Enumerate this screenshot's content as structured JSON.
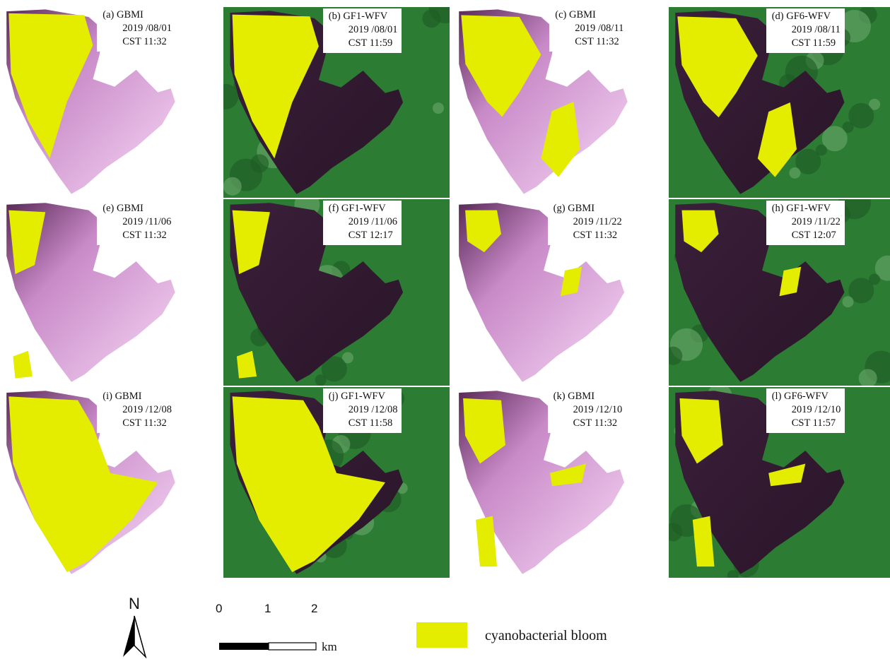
{
  "colors": {
    "bloom": "#e4ec00",
    "water_dark": "#3b1d39",
    "land_green": "#2c7c33",
    "gbmi_pink": "#e8b4e6"
  },
  "panels": [
    {
      "letter": "(a)",
      "sensor": "GBMI",
      "date": "2019 /08/01",
      "time": "CST 11:32",
      "type": "gbmi",
      "variant": 0
    },
    {
      "letter": "(b)",
      "sensor": "GF1-WFV",
      "date": "2019 /08/01",
      "time": "CST 11:59",
      "type": "wfv",
      "variant": 0
    },
    {
      "letter": "(c)",
      "sensor": "GBMI",
      "date": "2019 /08/11",
      "time": "CST 11:32",
      "type": "gbmi",
      "variant": 1
    },
    {
      "letter": "(d)",
      "sensor": "GF6-WFV",
      "date": "2019 /08/11",
      "time": "CST 11:59",
      "type": "wfv",
      "variant": 1
    },
    {
      "letter": "(e)",
      "sensor": "GBMI",
      "date": "2019 /11/06",
      "time": "CST 11:32",
      "type": "gbmi",
      "variant": 2
    },
    {
      "letter": "(f)",
      "sensor": "GF1-WFV",
      "date": "2019 /11/06",
      "time": "CST 12:17",
      "type": "wfv",
      "variant": 2
    },
    {
      "letter": "(g)",
      "sensor": "GBMI",
      "date": "2019 /11/22",
      "time": "CST 11:32",
      "type": "gbmi",
      "variant": 3
    },
    {
      "letter": "(h)",
      "sensor": "GF1-WFV",
      "date": "2019 /11/22",
      "time": "CST 12:07",
      "type": "wfv",
      "variant": 3
    },
    {
      "letter": "(i)",
      "sensor": "GBMI",
      "date": "2019 /12/08",
      "time": "CST 11:32",
      "type": "gbmi",
      "variant": 4
    },
    {
      "letter": "(j)",
      "sensor": "GF1-WFV",
      "date": "2019 /12/08",
      "time": "CST 11:58",
      "type": "wfv",
      "variant": 4
    },
    {
      "letter": "(k)",
      "sensor": "GBMI",
      "date": "2019 /12/10",
      "time": "CST 11:32",
      "type": "gbmi",
      "variant": 5
    },
    {
      "letter": "(l)",
      "sensor": "GF6-WFV",
      "date": "2019 /12/10",
      "time": "CST 11:57",
      "type": "wfv",
      "variant": 5
    }
  ],
  "legend": {
    "north_label": "N",
    "scale_ticks": [
      "0",
      "1",
      "2"
    ],
    "scale_unit": "km",
    "bloom_label": "cyanobacterial bloom"
  }
}
